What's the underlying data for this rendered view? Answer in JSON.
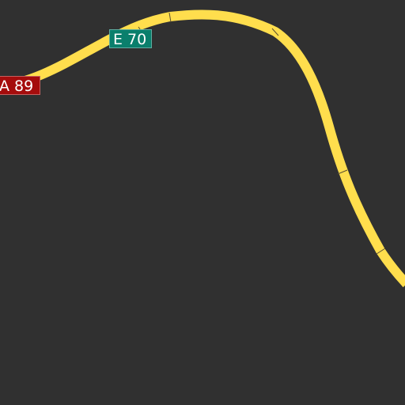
{
  "map": {
    "background_color": "#303030",
    "road": {
      "type": "motorway",
      "color": "#ffde4d"
    },
    "shields": [
      {
        "label": "E 70",
        "color": "#0a7f6c"
      },
      {
        "label": "A 89",
        "color": "#a50c0c"
      }
    ]
  }
}
